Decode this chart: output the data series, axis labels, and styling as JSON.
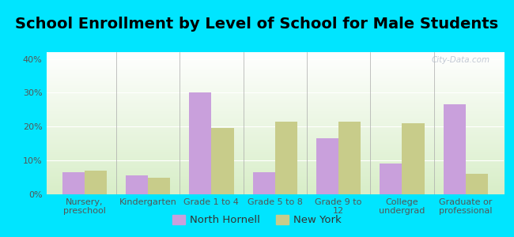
{
  "title": "School Enrollment by Level of School for Male Students",
  "categories": [
    "Nursery,\npreschool",
    "Kindergarten",
    "Grade 1 to 4",
    "Grade 5 to 8",
    "Grade 9 to\n12",
    "College\nundergrad",
    "Graduate or\nprofessional"
  ],
  "north_hornell": [
    6.5,
    5.5,
    30.0,
    6.5,
    16.5,
    9.0,
    26.5
  ],
  "new_york": [
    7.0,
    5.0,
    19.5,
    21.5,
    21.5,
    21.0,
    6.0
  ],
  "color_nh": "#c9a0dc",
  "color_ny": "#c8cc8a",
  "background_fig": "#00e5ff",
  "ylim": [
    0,
    42
  ],
  "yticks": [
    0,
    10,
    20,
    30,
    40
  ],
  "ytick_labels": [
    "0%",
    "10%",
    "20%",
    "30%",
    "40%"
  ],
  "bar_width": 0.35,
  "legend_labels": [
    "North Hornell",
    "New York"
  ],
  "title_fontsize": 14,
  "tick_fontsize": 8,
  "legend_fontsize": 9.5
}
